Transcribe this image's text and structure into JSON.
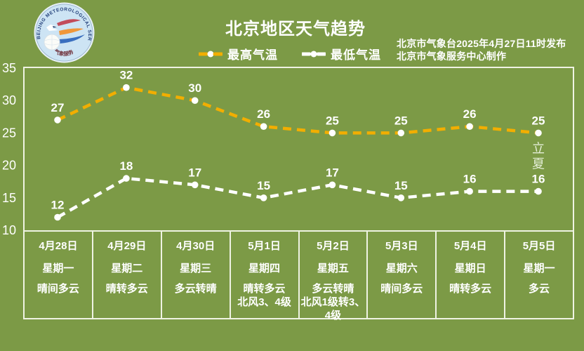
{
  "colors": {
    "background": "#7c9a46",
    "border": "#eff3e3",
    "text": "#ffffff",
    "high_line": "#f2ae00",
    "low_line": "#ffffff",
    "marker": "#ffffff",
    "annotation_text": "#e4eed6"
  },
  "header": {
    "title": "北京地区天气趋势",
    "issued": "北京市气象台2025年4月27日11时发布",
    "produced": "北京市气象服务中心制作",
    "logo": {
      "ring_text": "BEIJING METEOROLOGICAL SERVICE",
      "bottom_text": "气象服务"
    }
  },
  "legend": [
    {
      "label": "最高气温",
      "color": "#f2ae00"
    },
    {
      "label": "最低气温",
      "color": "#ffffff"
    }
  ],
  "chart_data": {
    "type": "line",
    "title": "北京地区天气趋势",
    "categories": [
      "4月28日",
      "4月29日",
      "4月30日",
      "5月1日",
      "5月2日",
      "5月3日",
      "5月4日",
      "5月5日"
    ],
    "series": [
      {
        "name": "最高气温",
        "color": "#f2ae00",
        "marker_color": "#ffffff",
        "values": [
          27,
          32,
          30,
          26,
          25,
          25,
          26,
          25
        ]
      },
      {
        "name": "最低气温",
        "color": "#ffffff",
        "marker_color": "#ffffff",
        "values": [
          12,
          18,
          17,
          15,
          17,
          15,
          16,
          16
        ]
      }
    ],
    "ylim": [
      10,
      35
    ],
    "yticks": [
      35,
      30,
      25,
      20,
      15,
      10
    ],
    "grid": false,
    "legend_position": "top",
    "annotation": {
      "text": "立夏",
      "category_index": 7,
      "orientation": "vertical"
    }
  },
  "table": {
    "days": [
      {
        "date": "4月28日",
        "weekday": "星期一",
        "weather": [
          "晴间多云"
        ]
      },
      {
        "date": "4月29日",
        "weekday": "星期二",
        "weather": [
          "晴转多云"
        ]
      },
      {
        "date": "4月30日",
        "weekday": "星期三",
        "weather": [
          "多云转晴"
        ]
      },
      {
        "date": "5月1日",
        "weekday": "星期四",
        "weather": [
          "晴转多云",
          "北风3、4级"
        ]
      },
      {
        "date": "5月2日",
        "weekday": "星期五",
        "weather": [
          "多云转晴",
          "北风1级转3、4级"
        ]
      },
      {
        "date": "5月3日",
        "weekday": "星期六",
        "weather": [
          "晴间多云"
        ]
      },
      {
        "date": "5月4日",
        "weekday": "星期日",
        "weather": [
          "晴转多云"
        ]
      },
      {
        "date": "5月5日",
        "weekday": "星期一",
        "weather": [
          "多云"
        ]
      }
    ]
  }
}
